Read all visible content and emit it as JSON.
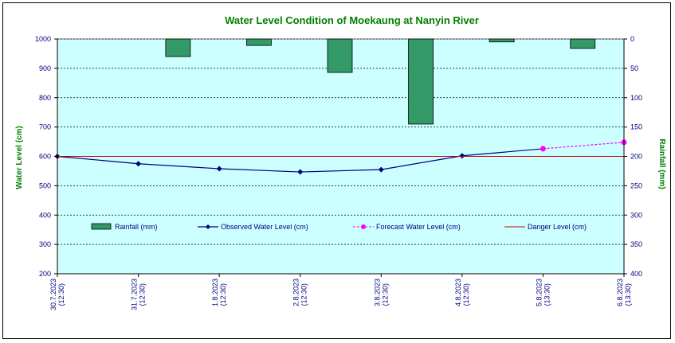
{
  "chart_data": {
    "type": "line",
    "title": "Water Level Condition of Moekaung at Nanyin River",
    "ylabel": "Water Level (cm)",
    "y2label": "Rainfall (mm)",
    "ylim": [
      200,
      1000
    ],
    "y2lim": [
      0,
      400
    ],
    "y2_inverted": true,
    "yticks": [
      "200",
      "300",
      "400",
      "500",
      "600",
      "700",
      "800",
      "900",
      "1000"
    ],
    "y2ticks": [
      "0",
      "50",
      "100",
      "150",
      "200",
      "250",
      "300",
      "350",
      "400"
    ],
    "categories": [
      [
        "30.7.2023",
        "(12:30)"
      ],
      [
        "31.7.2023",
        "(12:30)"
      ],
      [
        "1.8.2023",
        "(12:30)"
      ],
      [
        "2.8.2023",
        "(12:30)"
      ],
      [
        "3.8.2023",
        "(12:30)"
      ],
      [
        "4.8.2023",
        "(12:30)"
      ],
      [
        "5.8.2023",
        "(13:30)"
      ],
      [
        "6.8.2023",
        "(13:30)"
      ]
    ],
    "series": [
      {
        "name": "Rainfall (mm)",
        "type": "bar",
        "axis": "right",
        "color": "#339966",
        "values": [
          0,
          30,
          11,
          57,
          145,
          5,
          16,
          null
        ]
      },
      {
        "name": "Observed Water Level (cm)",
        "type": "line",
        "axis": "left",
        "color": "#000080",
        "values": [
          600,
          575,
          558,
          547,
          555,
          602,
          626,
          null
        ]
      },
      {
        "name": "Forecast Water Level (cm)",
        "type": "line",
        "axis": "left",
        "color": "#FF00FF",
        "dashed": true,
        "values": [
          null,
          null,
          null,
          null,
          null,
          null,
          626,
          648
        ]
      },
      {
        "name": "Danger Level (cm)",
        "type": "line",
        "axis": "left",
        "color": "#CC0000",
        "values": [
          600,
          600,
          600,
          600,
          600,
          600,
          600,
          600
        ]
      }
    ],
    "legend_position": "inside-bottom",
    "grid": true,
    "colors": {
      "plot_bg": "#CCFFFF",
      "title": "#008000",
      "axis_text": "#000080"
    }
  }
}
